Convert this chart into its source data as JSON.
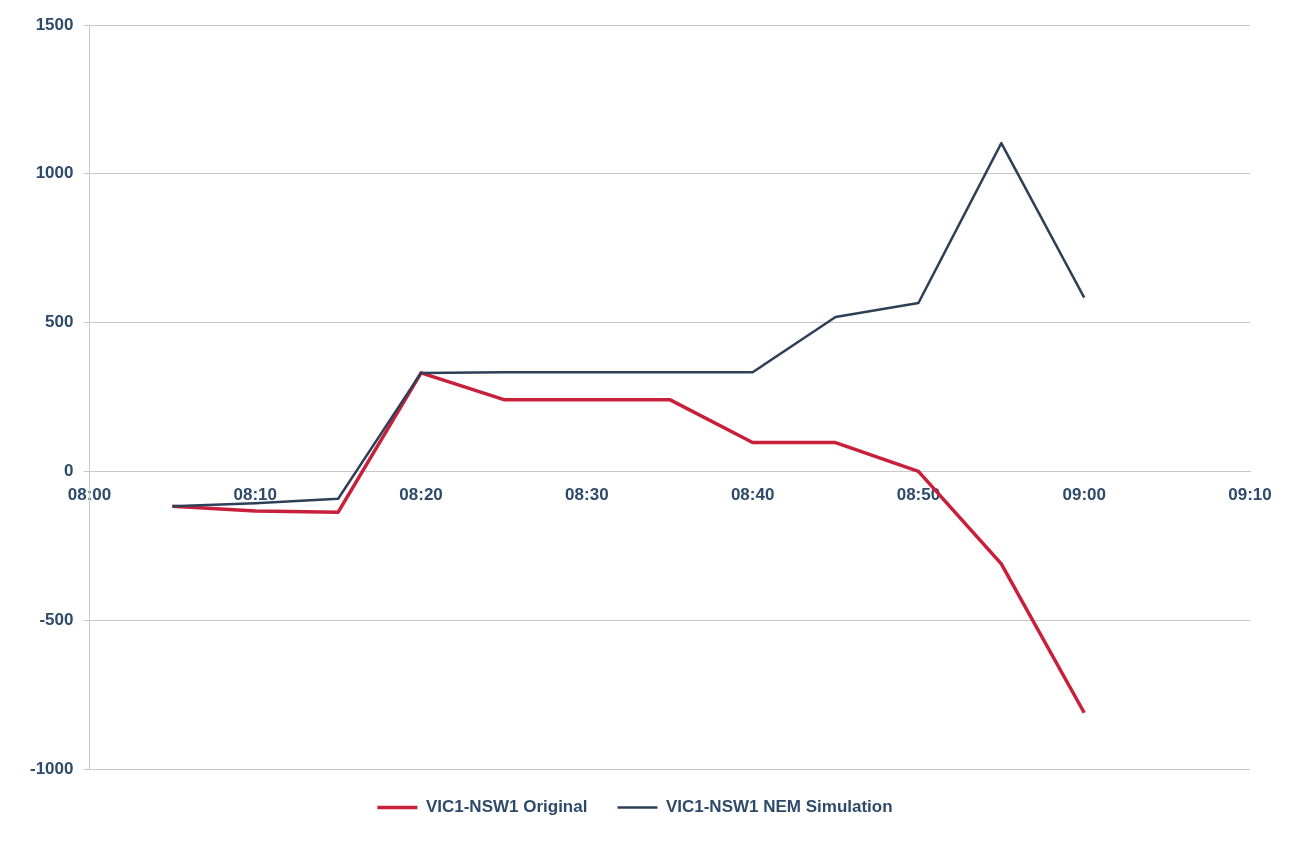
{
  "chart_data": {
    "type": "line",
    "x": [
      8.083333,
      8.166667,
      8.25,
      8.333333,
      8.416667,
      8.5,
      8.583333,
      8.666667,
      8.75,
      8.833333,
      8.916667,
      9.0
    ],
    "series": [
      {
        "name": "VIC1-NSW1 Original",
        "color": "#c8203a",
        "values": [
          -117,
          -133,
          -137,
          331,
          241,
          241,
          241,
          97,
          97,
          0,
          -311,
          -811
        ]
      },
      {
        "name": "VIC1-NSW1 NEM Simulation",
        "color": "#2e4057",
        "values": [
          -117,
          -107,
          -92,
          331,
          333,
          333,
          333,
          333,
          519,
          566,
          1103,
          584
        ]
      }
    ],
    "xlim": [
      8,
      9.166667
    ],
    "xticks": [
      {
        "value": 8,
        "label": "08:00"
      },
      {
        "value": 8.166667,
        "label": "08:10"
      },
      {
        "value": 8.333333,
        "label": "08:20"
      },
      {
        "value": 8.5,
        "label": "08:30"
      },
      {
        "value": 8.666667,
        "label": "08:40"
      },
      {
        "value": 8.833333,
        "label": "08:50"
      },
      {
        "value": 9.0,
        "label": "09:00"
      },
      {
        "value": 9.166667,
        "label": "09:10"
      }
    ],
    "ylim": [
      -1000,
      1500
    ],
    "yticks": [
      -1000,
      -500,
      0,
      500,
      1000,
      1500
    ],
    "grid": "y",
    "legend": "bottom",
    "marker": "none",
    "line_style": "solid"
  }
}
